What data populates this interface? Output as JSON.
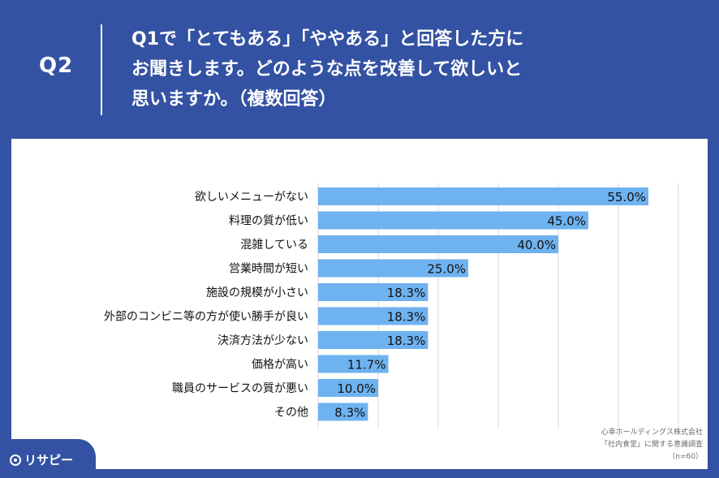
{
  "header": {
    "question_number": "Q2",
    "question_lines": [
      "Q1で「とてもある」「ややある」と回答した方に",
      "お聞きします。どのような点を改善して欲しいと",
      "思いますか。（複数回答）"
    ]
  },
  "chart_data": {
    "type": "bar",
    "orientation": "horizontal",
    "categories": [
      "欲しいメニューがない",
      "料理の質が低い",
      "混雑している",
      "営業時間が短い",
      "施設の規模が小さい",
      "外部のコンビニ等の方が使い勝手が良い",
      "決済方法が少ない",
      "価格が高い",
      "職員のサービスの質が悪い",
      "その他"
    ],
    "values": [
      55.0,
      45.0,
      40.0,
      25.0,
      18.3,
      18.3,
      18.3,
      11.7,
      10.0,
      8.3
    ],
    "value_labels": [
      "55.0%",
      "45.0%",
      "40.0%",
      "25.0%",
      "18.3%",
      "18.3%",
      "18.3%",
      "11.7%",
      "10.0%",
      "8.3%"
    ],
    "xlim": [
      0,
      60
    ],
    "grid": true,
    "bar_color": "#6eb2f0"
  },
  "source": {
    "lines": [
      "心幸ホールディングス株式会社",
      "「社内食堂」に関する意識調査",
      "（n=60）"
    ]
  },
  "logo": {
    "text": "リサピー"
  },
  "colors": {
    "background": "#3452a3",
    "panel": "#ffffff",
    "bar": "#6eb2f0"
  }
}
